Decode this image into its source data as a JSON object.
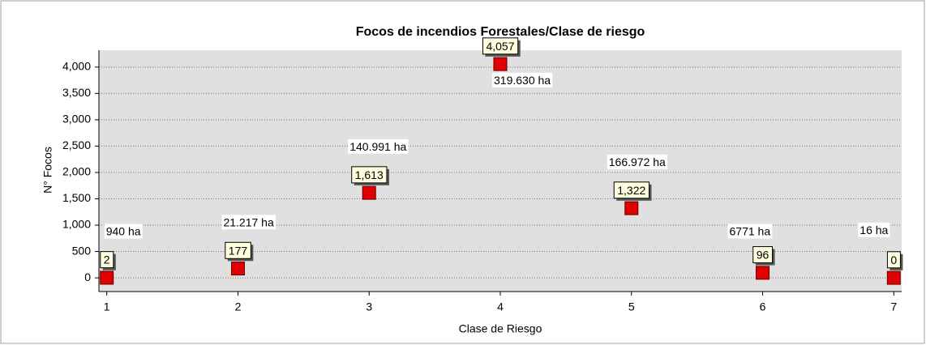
{
  "chart_data": {
    "type": "scatter",
    "title": "Focos de incendios Forestales/Clase de riesgo",
    "x_label": "Clase de Riesgo",
    "y_label": "N° Focos",
    "x": [
      1,
      2,
      3,
      4,
      5,
      6,
      7
    ],
    "values": [
      2,
      177,
      1613,
      4057,
      1322,
      96,
      0
    ],
    "value_labels": [
      "2",
      "177",
      "1,613",
      "4,057",
      "1,322",
      "96",
      "0"
    ],
    "area_labels": [
      "940 ha",
      "21.217 ha",
      "140.991 ha",
      "319.630 ha",
      "166.972 ha",
      "6771 ha",
      "16 ha"
    ],
    "color": "#e00000",
    "xlim": [
      0.94,
      7.06
    ],
    "xticks": [
      1,
      2,
      3,
      4,
      5,
      6,
      7
    ],
    "ylim": [
      -260,
      4320
    ],
    "yticks": [
      0,
      500,
      {
        "value": 1000,
        "label": "1,000"
      },
      {
        "value": 1500,
        "label": "1,500"
      },
      {
        "value": 2000,
        "label": "2,000"
      },
      {
        "value": 2500,
        "label": "2,500"
      },
      {
        "value": 3000,
        "label": "3,000"
      },
      {
        "value": 3500,
        "label": "3,500"
      },
      {
        "value": 4000,
        "label": "4,000"
      }
    ],
    "grid": true
  }
}
